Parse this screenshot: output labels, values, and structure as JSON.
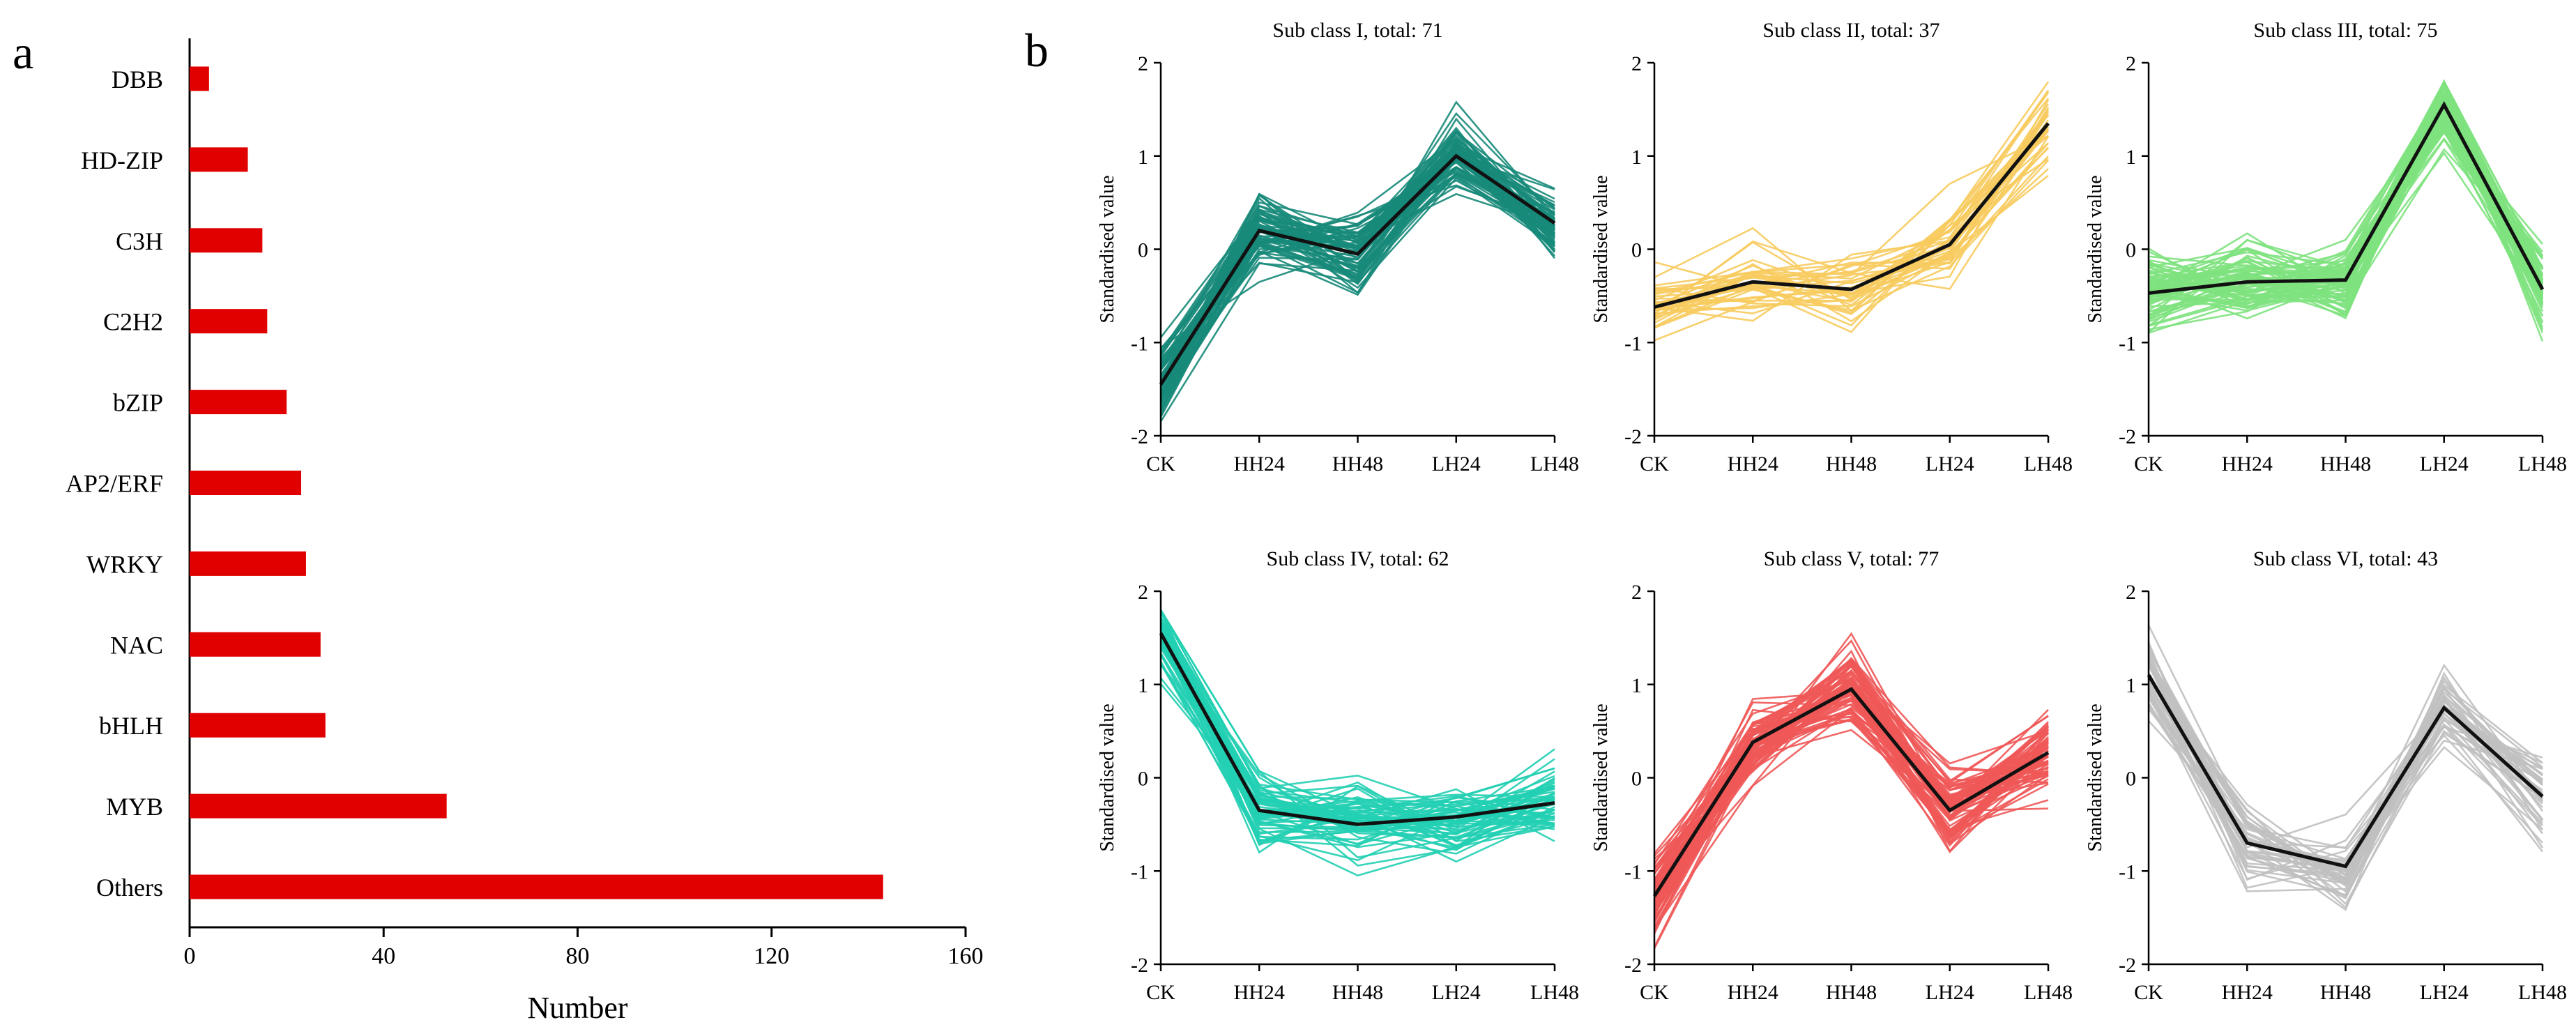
{
  "panels": {
    "a": "a",
    "b": "b"
  },
  "chart_data": [
    {
      "type": "bar",
      "orientation": "horizontal",
      "panel": "a",
      "categories": [
        "DBB",
        "HD-ZIP",
        "C3H",
        "C2H2",
        "bZIP",
        "AP2/ERF",
        "WRKY",
        "NAC",
        "bHLH",
        "MYB",
        "Others"
      ],
      "values": [
        4,
        12,
        15,
        16,
        20,
        23,
        24,
        27,
        28,
        53,
        143
      ],
      "xlabel": "Number",
      "xlim": [
        0,
        160
      ],
      "xticks": [
        0,
        40,
        80,
        120,
        160
      ],
      "color": "#e00000"
    },
    {
      "type": "line",
      "panel": "b",
      "x": [
        "CK",
        "HH24",
        "HH48",
        "LH24",
        "LH48"
      ],
      "ylabel": "Standardised value",
      "ylim": [
        -2,
        2
      ],
      "yticks": [
        -2,
        -1,
        0,
        1,
        2
      ],
      "mean_color": "#111111",
      "subplots": [
        {
          "title": "Sub class I, total: 71",
          "total": 71,
          "color": "#17897a",
          "mean": [
            -1.45,
            0.2,
            -0.05,
            1.0,
            0.28
          ]
        },
        {
          "title": "Sub class II, total: 37",
          "total": 37,
          "color": "#f7cb5e",
          "mean": [
            -0.62,
            -0.35,
            -0.43,
            0.05,
            1.35
          ]
        },
        {
          "title": "Sub class III, total: 75",
          "total": 75,
          "color": "#7ee27e",
          "mean": [
            -0.47,
            -0.35,
            -0.33,
            1.55,
            -0.43
          ]
        },
        {
          "title": "Sub class IV, total: 62",
          "total": 62,
          "color": "#22cfb3",
          "mean": [
            1.55,
            -0.35,
            -0.5,
            -0.42,
            -0.27
          ]
        },
        {
          "title": "Sub class V, total: 77",
          "total": 77,
          "color": "#f05858",
          "mean": [
            -1.27,
            0.38,
            0.95,
            -0.35,
            0.27
          ]
        },
        {
          "title": "Sub class VI, total: 43",
          "total": 43,
          "color": "#c0c0c0",
          "mean": [
            1.1,
            -0.7,
            -0.95,
            0.75,
            -0.2
          ]
        }
      ]
    }
  ]
}
